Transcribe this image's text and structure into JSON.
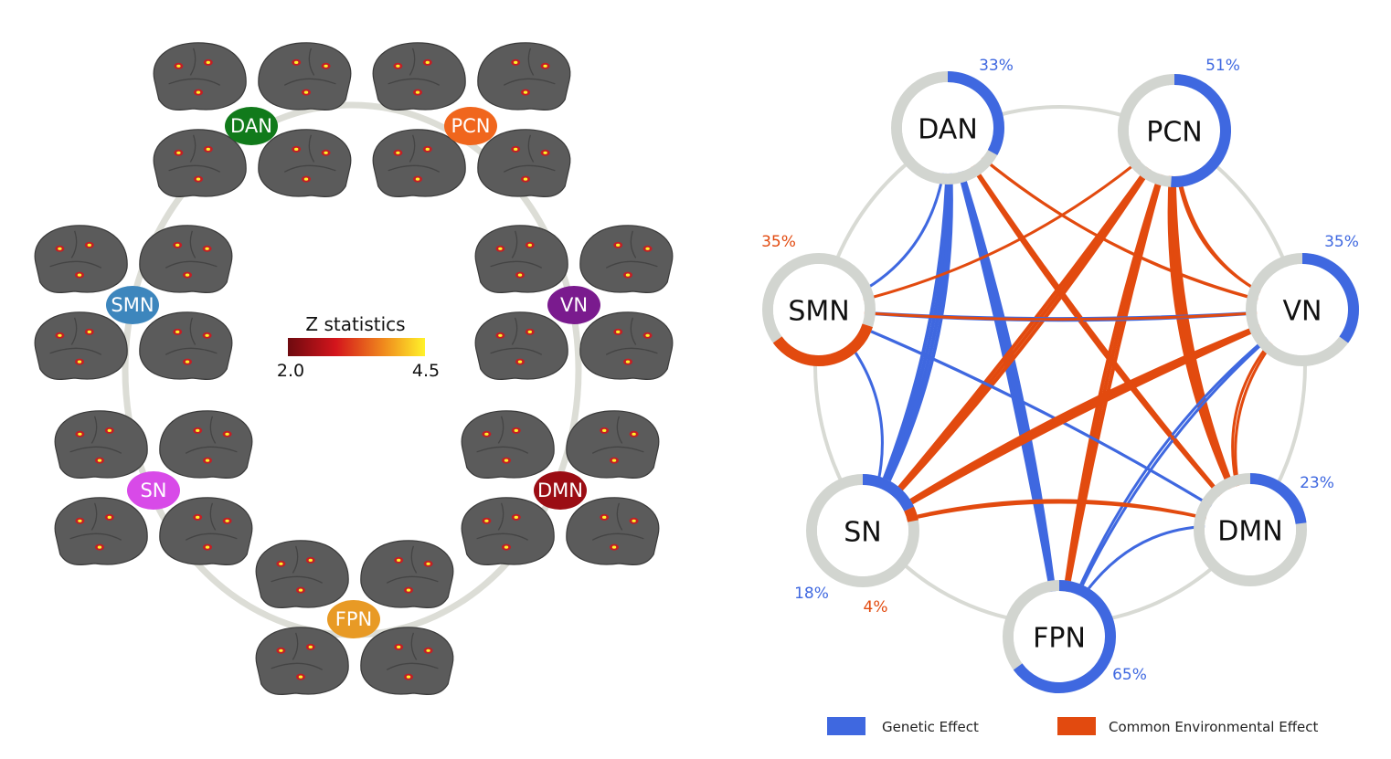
{
  "left_panel": {
    "networks": [
      {
        "id": "DAN",
        "label": "DAN",
        "color": "#117a1b"
      },
      {
        "id": "PCN",
        "label": "PCN",
        "color": "#f0661d"
      },
      {
        "id": "SMN",
        "label": "SMN",
        "color": "#3d86bd"
      },
      {
        "id": "VN",
        "label": "VN",
        "color": "#7a1b8e"
      },
      {
        "id": "SN",
        "label": "SN",
        "color": "#d84ae8"
      },
      {
        "id": "DMN",
        "label": "DMN",
        "color": "#9b0d14"
      },
      {
        "id": "FPN",
        "label": "FPN",
        "color": "#e89a25"
      }
    ],
    "colorbar": {
      "title": "Z statistics",
      "min_label": "2.0",
      "max_label": "4.5",
      "colors": [
        "#6e0a0f",
        "#d4151c",
        "#f08a1d",
        "#fff22a"
      ]
    }
  },
  "right_panel": {
    "nodes": [
      {
        "id": "DAN",
        "label": "DAN",
        "genetic_pct": 33,
        "genetic_label": "33%",
        "env_pct": 0,
        "env_label": ""
      },
      {
        "id": "PCN",
        "label": "PCN",
        "genetic_pct": 51,
        "genetic_label": "51%",
        "env_pct": 0,
        "env_label": ""
      },
      {
        "id": "SMN",
        "label": "SMN",
        "genetic_pct": 0,
        "genetic_label": "",
        "env_pct": 35,
        "env_label": "35%"
      },
      {
        "id": "VN",
        "label": "VN",
        "genetic_pct": 35,
        "genetic_label": "35%",
        "env_pct": 0,
        "env_label": ""
      },
      {
        "id": "SN",
        "label": "SN",
        "genetic_pct": 18,
        "genetic_label": "18%",
        "env_pct": 4,
        "env_label": "4%"
      },
      {
        "id": "DMN",
        "label": "DMN",
        "genetic_pct": 23,
        "genetic_label": "23%",
        "env_pct": 0,
        "env_label": ""
      },
      {
        "id": "FPN",
        "label": "FPN",
        "genetic_pct": 65,
        "genetic_label": "65%",
        "env_pct": 0,
        "env_label": ""
      }
    ],
    "connections": [
      {
        "from": "DAN",
        "to": "SN",
        "type": "genetic",
        "strands": 4
      },
      {
        "from": "DAN",
        "to": "FPN",
        "type": "genetic",
        "strands": 4
      },
      {
        "from": "DAN",
        "to": "DMN",
        "type": "environmental",
        "strands": 3
      },
      {
        "from": "DAN",
        "to": "VN",
        "type": "environmental",
        "strands": 2
      },
      {
        "from": "PCN",
        "to": "SN",
        "type": "environmental",
        "strands": 3
      },
      {
        "from": "PCN",
        "to": "DMN",
        "type": "environmental",
        "strands": 4
      },
      {
        "from": "PCN",
        "to": "VN",
        "type": "environmental",
        "strands": 2
      },
      {
        "from": "PCN",
        "to": "FPN",
        "type": "environmental",
        "strands": 3
      },
      {
        "from": "PCN",
        "to": "SMN",
        "type": "environmental",
        "strands": 1
      },
      {
        "from": "SMN",
        "to": "DAN",
        "type": "genetic",
        "strands": 1
      },
      {
        "from": "SMN",
        "to": "VN",
        "type": "genetic",
        "strands": 2
      },
      {
        "from": "SMN",
        "to": "DMN",
        "type": "genetic",
        "strands": 2
      },
      {
        "from": "SMN",
        "to": "SN",
        "type": "genetic",
        "strands": 1
      },
      {
        "from": "SMN",
        "to": "VN",
        "type": "environmental",
        "strands": 1
      },
      {
        "from": "VN",
        "to": "SN",
        "type": "environmental",
        "strands": 3
      },
      {
        "from": "VN",
        "to": "FPN",
        "type": "genetic",
        "strands": 2
      },
      {
        "from": "VN",
        "to": "DMN",
        "type": "environmental",
        "strands": 2
      },
      {
        "from": "DMN",
        "to": "SN",
        "type": "environmental",
        "strands": 2
      },
      {
        "from": "DMN",
        "to": "FPN",
        "type": "genetic",
        "strands": 1
      },
      {
        "from": "DMN",
        "to": "DAN",
        "type": "environmental",
        "strands": 1
      }
    ],
    "colors": {
      "genetic": "#3f68e0",
      "environmental": "#e24a0f",
      "ring_base": "#d2d5d0",
      "frame": "#d8dad4"
    },
    "legend": [
      {
        "label": "Genetic Effect",
        "type": "genetic"
      },
      {
        "label": "Common Environmental Effect",
        "type": "environmental"
      }
    ]
  }
}
